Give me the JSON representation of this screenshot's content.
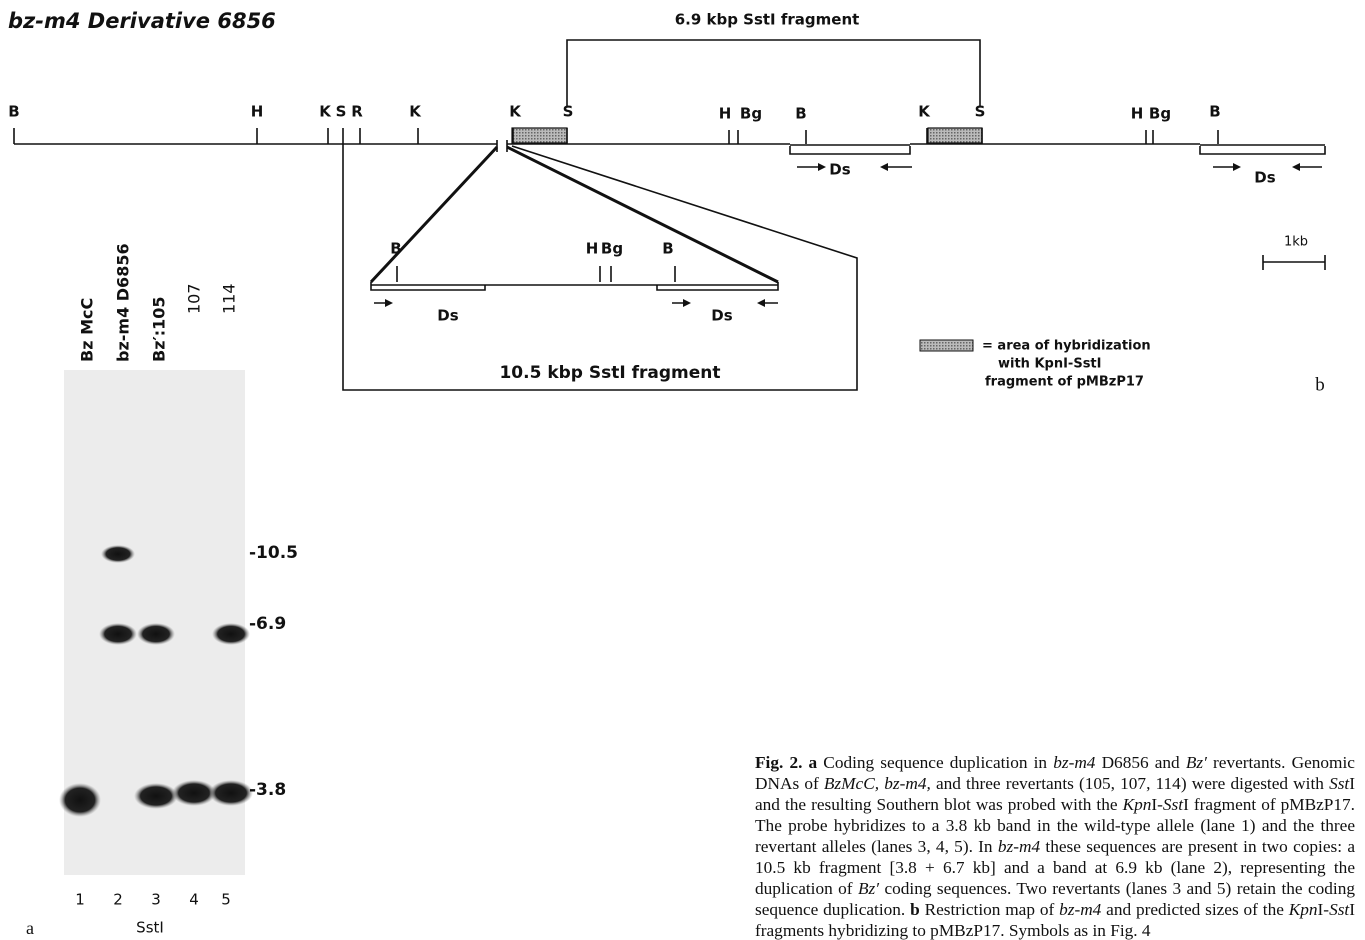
{
  "title": "bz-m4 Derivative 6856",
  "map": {
    "sites": [
      "B",
      "H",
      "K",
      "S",
      "R",
      "K",
      "K",
      "S",
      "H",
      "Bg",
      "B",
      "K",
      "S",
      "H",
      "Bg",
      "B"
    ],
    "ds_labels": [
      "Ds",
      "Ds"
    ],
    "fragment_top": "6.9 kbp SstI fragment",
    "fragment_bottom": "10.5 kbp SstI fragment",
    "inset_sites": [
      "B",
      "H",
      "Bg",
      "B"
    ],
    "inset_ds_labels": [
      "Ds",
      "Ds"
    ],
    "scale": "1kb",
    "legend": [
      "= area of hybridization",
      "with KpnI-SstI",
      "fragment of pMBzP17"
    ],
    "panel": "b"
  },
  "gel": {
    "lanes": [
      "Bz McC",
      "bz-m4 D6856",
      "Bz′:105",
      "107",
      "114"
    ],
    "sizes": [
      "-10.5",
      "-6.9",
      "-3.8"
    ],
    "lane_numbers": [
      "1",
      "2",
      "3",
      "4",
      "5"
    ],
    "enzyme": "SstI",
    "panel": "a"
  },
  "caption": {
    "segments": [
      "Fig. 2.",
      "a",
      "Coding sequence duplication in",
      "bz-m4",
      "D6856 and",
      "Bz′",
      "revertants. Genomic DNAs of",
      "BzMcC, bz-m4,",
      "and three revertants (105, 107, 114) were digested with",
      "Sst",
      "I and the resulting Southern blot was probed with the",
      "Kpn",
      "I-",
      "Sst",
      "I fragment of pMBzP17. The probe hybridizes to a 3.8 kb band in the wild-type allele (lane 1) and the three revertant alleles (lanes 3, 4, 5). In",
      "bz-m4",
      "these sequences are present in two copies: a 10.5 kb fragment [3.8 + 6.7 kb] and a band at 6.9 kb (lane 2), representing the duplication of",
      "Bz′",
      "coding sequences. Two revertants (lanes 3 and 5) retain the coding sequence duplication.",
      "b",
      "Restriction map of",
      "bz-m4",
      "and predicted sizes of the",
      "Kpn",
      "I-",
      "Sst",
      "I fragments hybridizing to pMBzP17. Symbols as in Fig. 4"
    ]
  }
}
